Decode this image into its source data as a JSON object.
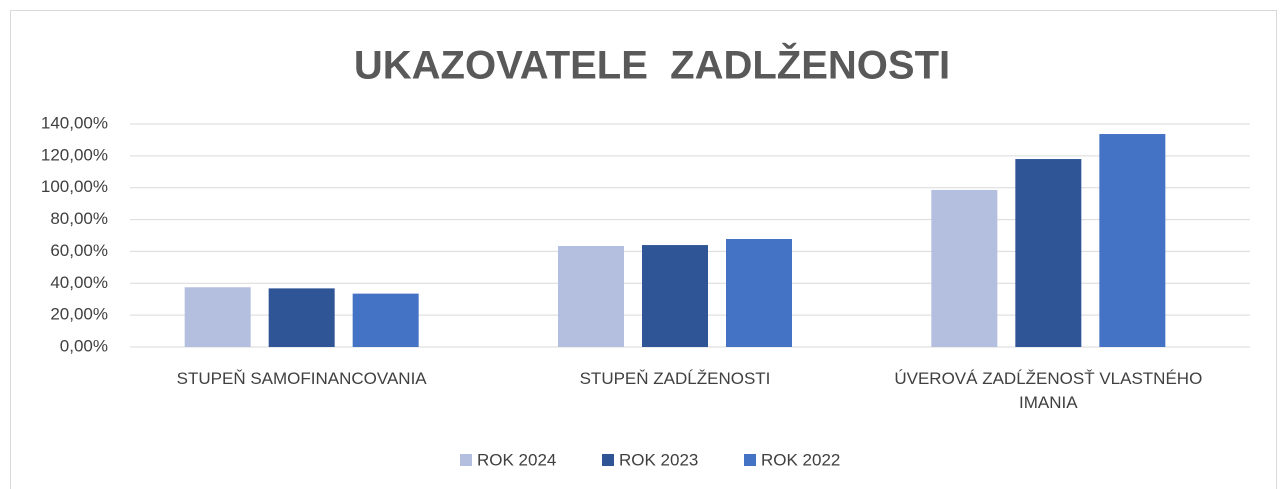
{
  "chart_data": {
    "type": "bar",
    "title": "UKAZOVATELE  ZADLŽENOSTI",
    "categories": [
      "STUPEŇ SAMOFINANCOVANIA",
      "STUPEŇ ZADĹŽENOSTI",
      "ÚVEROVÁ ZADĹŽENOSŤ VLASTNÉHO IMANIA"
    ],
    "series": [
      {
        "name": "ROK 2024",
        "color": "#b4bfe0",
        "values": [
          37.5,
          63.4,
          98.6
        ]
      },
      {
        "name": "ROK 2023",
        "color": "#2f5597",
        "values": [
          36.8,
          64.0,
          118.0
        ]
      },
      {
        "name": "ROK 2022",
        "color": "#4472c4",
        "values": [
          33.5,
          67.8,
          133.7
        ]
      }
    ],
    "ylim": [
      0,
      140
    ],
    "yticks": [
      {
        "value": 0,
        "label": "0,00%"
      },
      {
        "value": 20,
        "label": "20,00%"
      },
      {
        "value": 40,
        "label": "40,00%"
      },
      {
        "value": 60,
        "label": "60,00%"
      },
      {
        "value": 80,
        "label": "80,00%"
      },
      {
        "value": 100,
        "label": "100,00%"
      },
      {
        "value": 120,
        "label": "120,00%"
      },
      {
        "value": 140,
        "label": "140,00%"
      }
    ],
    "grid": true,
    "legend": "bottom"
  }
}
